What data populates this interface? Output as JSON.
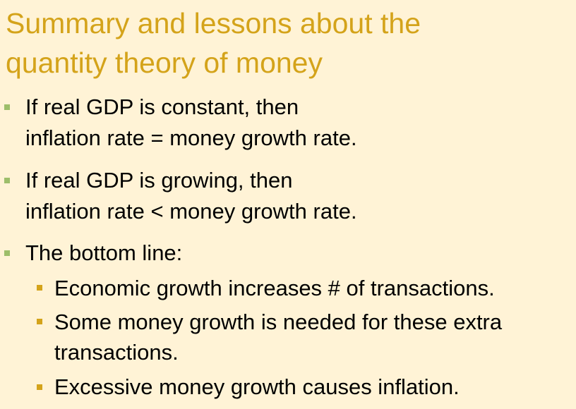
{
  "title": {
    "line1": "Summary and lessons about the",
    "line2": "quantity theory of money"
  },
  "bullets": [
    {
      "line1": "If real GDP is constant, then",
      "line2": "inflation rate = money growth rate."
    },
    {
      "line1": "If real GDP is growing, then",
      "line2": "inflation rate < money growth rate."
    },
    {
      "line1": "The bottom line:",
      "sub": [
        {
          "line1": "Economic growth increases # of transactions."
        },
        {
          "line1": "Some money growth is needed for these extra",
          "line2": "transactions."
        },
        {
          "line1": "Excessive money growth causes inflation."
        }
      ]
    }
  ],
  "colors": {
    "background": "#FFF3D6",
    "title": "#D4A31A",
    "level1_marker": "#9DBE6A",
    "level2_marker": "#D4A31A",
    "text": "#000000"
  }
}
